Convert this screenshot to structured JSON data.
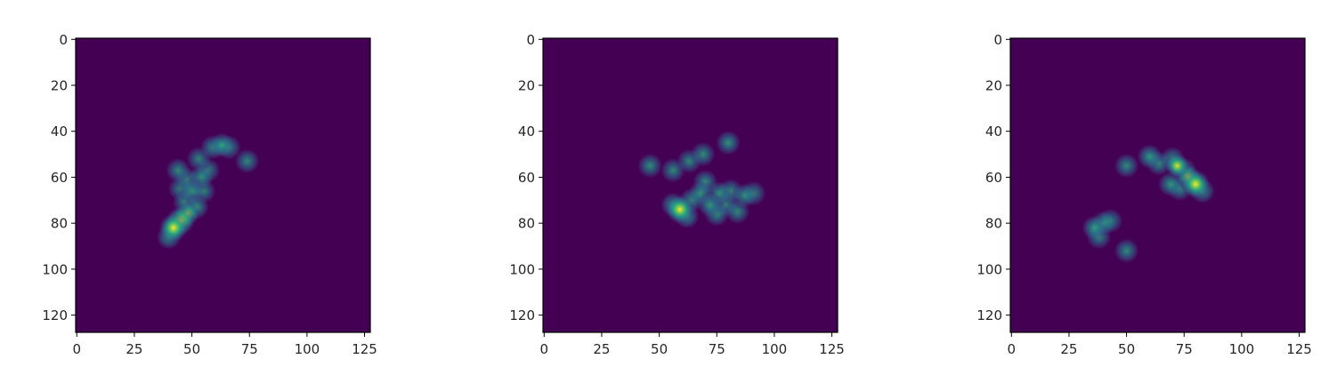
{
  "colors": {
    "background": "#440154",
    "frame": "#000000",
    "tick_text": "#262626",
    "colormap": "viridis"
  },
  "chart_data": [
    {
      "type": "heatmap",
      "title": "",
      "xlabel": "",
      "ylabel": "",
      "xlim": [
        0,
        127
      ],
      "ylim": [
        127,
        0
      ],
      "xticks": [
        0,
        25,
        50,
        75,
        100,
        125
      ],
      "yticks": [
        0,
        20,
        40,
        60,
        80,
        100,
        120
      ],
      "blobs": [
        {
          "x": 42,
          "y": 82,
          "value": 1.0
        },
        {
          "x": 45,
          "y": 79,
          "value": 0.85
        },
        {
          "x": 40,
          "y": 86,
          "value": 0.6
        },
        {
          "x": 48,
          "y": 76,
          "value": 0.7
        },
        {
          "x": 52,
          "y": 73,
          "value": 0.55
        },
        {
          "x": 47,
          "y": 71,
          "value": 0.45
        },
        {
          "x": 50,
          "y": 66,
          "value": 0.45
        },
        {
          "x": 55,
          "y": 66,
          "value": 0.4
        },
        {
          "x": 45,
          "y": 65,
          "value": 0.35
        },
        {
          "x": 54,
          "y": 60,
          "value": 0.4
        },
        {
          "x": 48,
          "y": 61,
          "value": 0.35
        },
        {
          "x": 44,
          "y": 57,
          "value": 0.4
        },
        {
          "x": 57,
          "y": 57,
          "value": 0.35
        },
        {
          "x": 53,
          "y": 52,
          "value": 0.35
        },
        {
          "x": 59,
          "y": 47,
          "value": 0.45
        },
        {
          "x": 63,
          "y": 46,
          "value": 0.55
        },
        {
          "x": 66,
          "y": 47,
          "value": 0.4
        },
        {
          "x": 74,
          "y": 53,
          "value": 0.4
        }
      ]
    },
    {
      "type": "heatmap",
      "title": "",
      "xlabel": "",
      "ylabel": "",
      "xlim": [
        0,
        127
      ],
      "ylim": [
        127,
        0
      ],
      "xticks": [
        0,
        25,
        50,
        75,
        100,
        125
      ],
      "yticks": [
        0,
        20,
        40,
        60,
        80,
        100,
        120
      ],
      "blobs": [
        {
          "x": 59,
          "y": 74,
          "value": 1.0
        },
        {
          "x": 56,
          "y": 72,
          "value": 0.6
        },
        {
          "x": 62,
          "y": 77,
          "value": 0.55
        },
        {
          "x": 64,
          "y": 70,
          "value": 0.5
        },
        {
          "x": 68,
          "y": 67,
          "value": 0.5
        },
        {
          "x": 70,
          "y": 62,
          "value": 0.45
        },
        {
          "x": 72,
          "y": 72,
          "value": 0.55
        },
        {
          "x": 76,
          "y": 67,
          "value": 0.45
        },
        {
          "x": 75,
          "y": 76,
          "value": 0.45
        },
        {
          "x": 79,
          "y": 72,
          "value": 0.4
        },
        {
          "x": 81,
          "y": 66,
          "value": 0.4
        },
        {
          "x": 84,
          "y": 75,
          "value": 0.4
        },
        {
          "x": 87,
          "y": 68,
          "value": 0.4
        },
        {
          "x": 91,
          "y": 67,
          "value": 0.35
        },
        {
          "x": 46,
          "y": 55,
          "value": 0.45
        },
        {
          "x": 56,
          "y": 57,
          "value": 0.4
        },
        {
          "x": 63,
          "y": 53,
          "value": 0.4
        },
        {
          "x": 69,
          "y": 50,
          "value": 0.45
        },
        {
          "x": 80,
          "y": 45,
          "value": 0.5
        }
      ]
    },
    {
      "type": "heatmap",
      "title": "",
      "xlabel": "",
      "ylabel": "",
      "xlim": [
        0,
        127
      ],
      "ylim": [
        127,
        0
      ],
      "xticks": [
        0,
        25,
        50,
        75,
        100,
        125
      ],
      "yticks": [
        0,
        20,
        40,
        60,
        80,
        100,
        120
      ],
      "blobs": [
        {
          "x": 80,
          "y": 63,
          "value": 1.0
        },
        {
          "x": 77,
          "y": 60,
          "value": 0.7
        },
        {
          "x": 83,
          "y": 66,
          "value": 0.55
        },
        {
          "x": 72,
          "y": 55,
          "value": 0.75
        },
        {
          "x": 75,
          "y": 57,
          "value": 0.55
        },
        {
          "x": 69,
          "y": 63,
          "value": 0.5
        },
        {
          "x": 73,
          "y": 65,
          "value": 0.45
        },
        {
          "x": 60,
          "y": 51,
          "value": 0.6
        },
        {
          "x": 64,
          "y": 54,
          "value": 0.45
        },
        {
          "x": 70,
          "y": 52,
          "value": 0.45
        },
        {
          "x": 50,
          "y": 55,
          "value": 0.45
        },
        {
          "x": 36,
          "y": 82,
          "value": 0.6
        },
        {
          "x": 40,
          "y": 80,
          "value": 0.45
        },
        {
          "x": 43,
          "y": 79,
          "value": 0.4
        },
        {
          "x": 38,
          "y": 86,
          "value": 0.4
        },
        {
          "x": 50,
          "y": 92,
          "value": 0.45
        }
      ]
    }
  ]
}
